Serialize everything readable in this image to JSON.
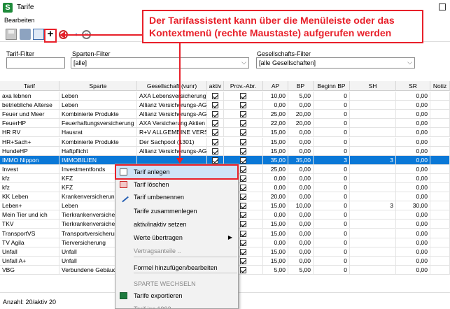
{
  "window": {
    "title": "Tarife",
    "app_icon": "S",
    "close_glyph": "✕"
  },
  "menubar": {
    "items": [
      "Bearbeiten"
    ]
  },
  "toolbar": {
    "add_glyph": "+",
    "rename_glyph": "⬩",
    "cancel_glyph": "✕"
  },
  "callout": {
    "text": "Der Tarifassistent kann über die Menüleiste oder das Kontextmenü (rechte Maustaste) aufgerufen werden",
    "color": "#e8202a"
  },
  "filters": {
    "tarif_label": "Tarif-Filter",
    "tarif_value": "",
    "sparten_label": "Sparten-Filter",
    "sparten_value": "[alle]",
    "gesellschafts_label": "Gesellschafts-Filter",
    "gesellschafts_value": "[alle Gesellschaften]",
    "chevron": "⌵"
  },
  "table": {
    "columns": [
      "Tarif",
      "Sparte",
      "Gesellschaft (vunr)",
      "aktiv",
      "Prov.-Abr.",
      "AP",
      "BP",
      "Beginn BP",
      "SH",
      "SR",
      "Notiz"
    ],
    "rows": [
      [
        "axa lebnen",
        "Leben",
        "AXA Lebensversicherung",
        true,
        true,
        "10,00",
        "5,00",
        "0",
        "",
        "0,00",
        ""
      ],
      [
        "betriebliche Alterse",
        "Leben",
        "Allianz Versicherungs-AG",
        true,
        true,
        "0,00",
        "0,00",
        "0",
        "",
        "0,00",
        ""
      ],
      [
        "Feuer und Meer",
        "Kombinierte Produkte",
        "Allianz Versicherungs-AG",
        true,
        true,
        "25,00",
        "20,00",
        "0",
        "",
        "0,00",
        ""
      ],
      [
        "FeuerHP",
        "Feuerhaftungsversicherung",
        "AXA Versicherung Aktien",
        true,
        true,
        "22,00",
        "20,00",
        "0",
        "",
        "0,00",
        ""
      ],
      [
        "HR RV",
        "Hausrat",
        "R+V ALLGEMEINE VERSIC",
        true,
        true,
        "15,00",
        "0,00",
        "0",
        "",
        "0,00",
        ""
      ],
      [
        "HR+Sach+",
        "Kombinierte Produkte",
        "Der Sachpool (1301)",
        true,
        true,
        "15,00",
        "0,00",
        "0",
        "",
        "0,00",
        ""
      ],
      [
        "HundeHP",
        "Haftpflicht",
        "Allianz Versicherungs-AG",
        true,
        true,
        "15,00",
        "0,00",
        "0",
        "",
        "0,00",
        ""
      ],
      [
        "IMMO Nippon",
        "IMMOBILIEN",
        "",
        true,
        true,
        "35,00",
        "35,00",
        "3",
        "3",
        "0,00",
        ""
      ],
      [
        "Invest",
        "Investmentfonds",
        "",
        true,
        true,
        "25,00",
        "0,00",
        "0",
        "",
        "0,00",
        ""
      ],
      [
        "kfz",
        "KFZ",
        "",
        true,
        true,
        "0,00",
        "0,00",
        "0",
        "",
        "0,00",
        ""
      ],
      [
        "kfz",
        "KFZ",
        "",
        true,
        true,
        "0,00",
        "0,00",
        "0",
        "",
        "0,00",
        ""
      ],
      [
        "KK Leben",
        "Krankenversicherung",
        "",
        true,
        true,
        "20,00",
        "0,00",
        "0",
        "",
        "0,00",
        ""
      ],
      [
        "Leben+",
        "Leben",
        "",
        true,
        true,
        "15,00",
        "10,00",
        "0",
        "3",
        "30,00",
        ""
      ],
      [
        "Mein Tier und ich",
        "Tierkrankenversicher",
        "",
        true,
        true,
        "0,00",
        "0,00",
        "0",
        "",
        "0,00",
        ""
      ],
      [
        "TKV",
        "Tierkrankenversicher",
        "",
        true,
        true,
        "15,00",
        "0,00",
        "0",
        "",
        "0,00",
        ""
      ],
      [
        "TransportVS",
        "Transportversicherun",
        "",
        true,
        true,
        "15,00",
        "0,00",
        "0",
        "",
        "0,00",
        ""
      ],
      [
        "TV Agila",
        "Tierversicherung",
        "",
        true,
        true,
        "0,00",
        "0,00",
        "0",
        "",
        "0,00",
        ""
      ],
      [
        "Unfall",
        "Unfall",
        "",
        true,
        true,
        "15,00",
        "0,00",
        "0",
        "",
        "0,00",
        ""
      ],
      [
        "Unfall A+",
        "Unfall",
        "",
        true,
        true,
        "15,00",
        "0,00",
        "0",
        "",
        "0,00",
        ""
      ],
      [
        "VBG",
        "Verbundene Gebäud",
        "",
        true,
        true,
        "5,00",
        "5,00",
        "0",
        "",
        "0,00",
        ""
      ]
    ],
    "selected_row": 7
  },
  "context_menu": {
    "items": [
      {
        "label": "Tarif anlegen",
        "icon": "new-tarif-icon",
        "enabled": true,
        "highlighted": true
      },
      {
        "label": "Tarif löschen",
        "icon": "delete-tarif-icon",
        "enabled": true
      },
      {
        "label": "Tarif umbenennen",
        "icon": "rename-pen-icon",
        "enabled": true
      },
      {
        "label": "Tarife zusammenlegen",
        "enabled": true
      },
      {
        "label": "aktiv/inaktiv setzen",
        "enabled": true
      },
      {
        "label": "Werte übertragen",
        "enabled": true,
        "submenu": true
      },
      {
        "label": "Vertragsanteile ..",
        "enabled": false
      },
      {
        "label": "Formel hinzufügen/bearbeiten",
        "enabled": true
      },
      {
        "label": "SPARTE WECHSELN",
        "enabled": false
      },
      {
        "label": "Tarife exportieren",
        "icon": "excel-export-icon",
        "enabled": true
      },
      {
        "label": "Tarif ins 1993",
        "enabled": false
      }
    ],
    "submenu_arrow": "▶"
  },
  "statusbar": {
    "text": "Anzahl: 20/aktiv 20"
  }
}
